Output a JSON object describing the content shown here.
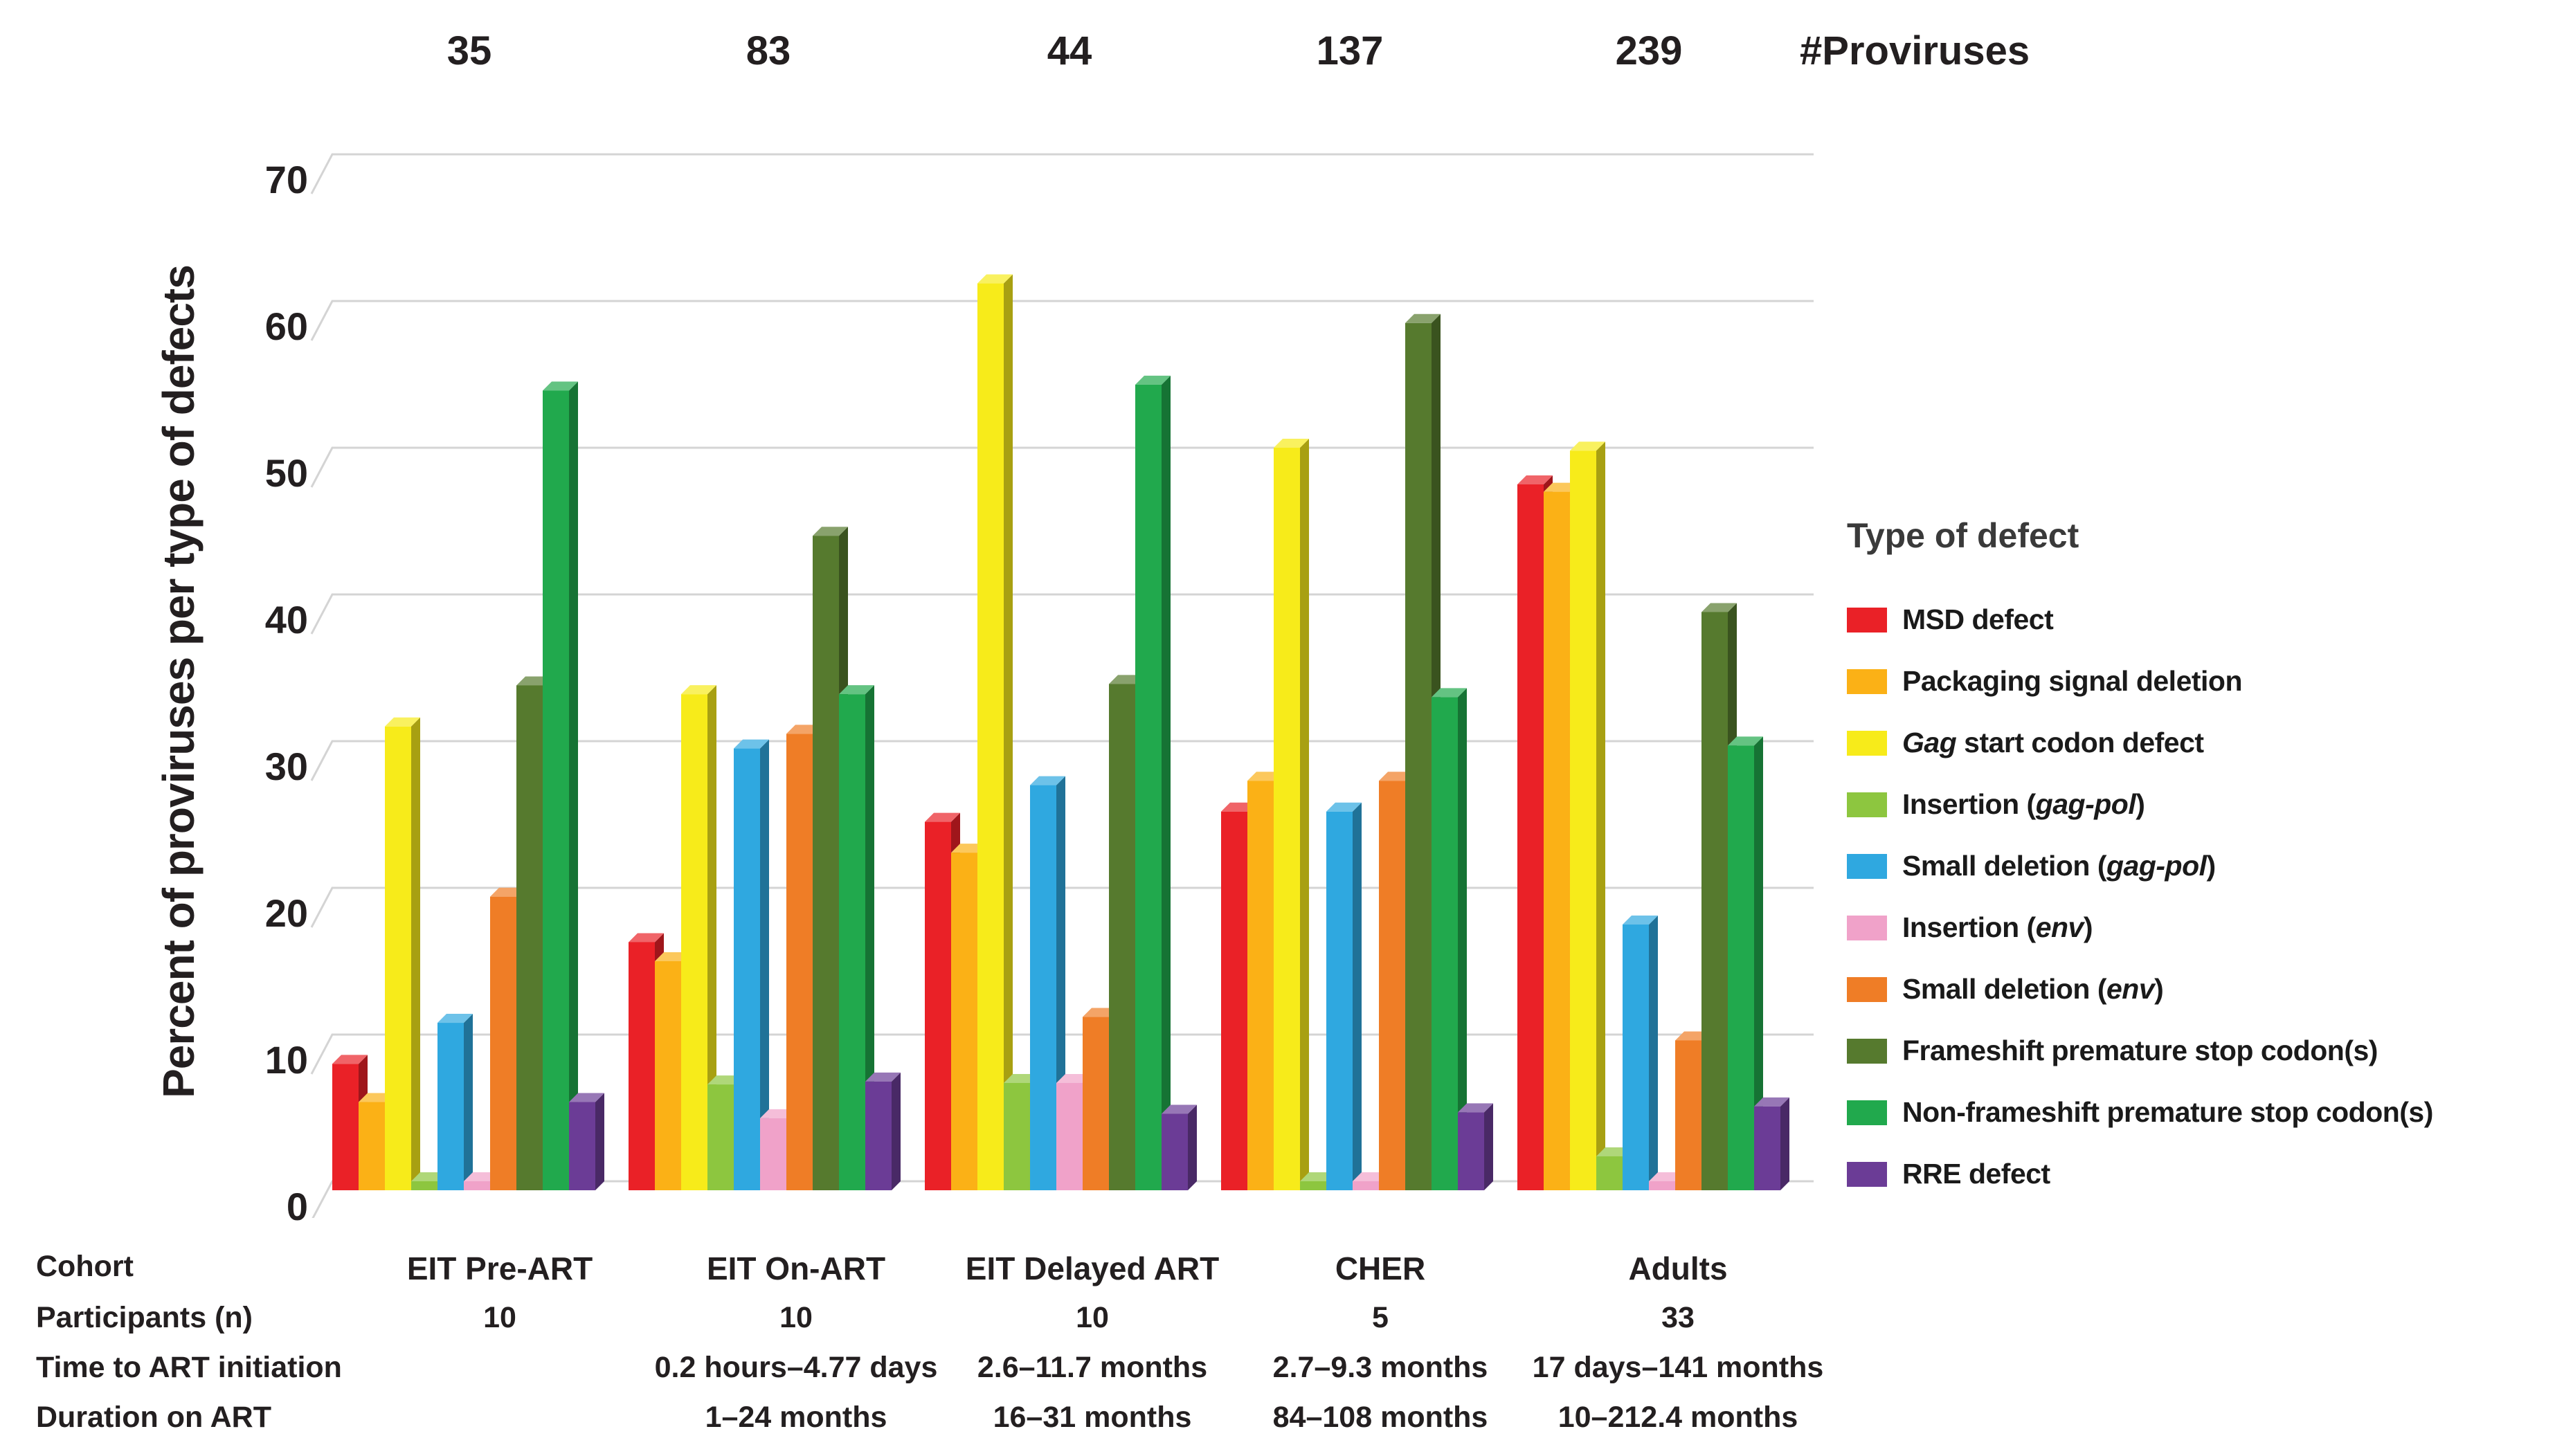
{
  "proviruses_row": {
    "counts": [
      "35",
      "83",
      "44",
      "137",
      "239"
    ],
    "label": "#Proviruses"
  },
  "y_axis": {
    "title": "Percent of proviruses per type of defects",
    "ticks": [
      "70",
      "60",
      "50",
      "40",
      "30",
      "20",
      "10",
      "0"
    ]
  },
  "legend": {
    "title": "Type of defect"
  },
  "chart_data": {
    "type": "bar",
    "style": "3d-grouped-bars",
    "title": "",
    "xlabel": "Cohort",
    "ylabel": "Percent of proviruses per type of defects",
    "ylim": [
      0,
      70
    ],
    "ytick_step": 10,
    "grid": true,
    "legend_position": "right",
    "categories": [
      "EIT Pre-ART",
      "EIT On-ART",
      "EIT Delayed ART",
      "CHER",
      "Adults"
    ],
    "proviruses_counts": [
      35,
      83,
      44,
      137,
      239
    ],
    "series": [
      {
        "name": "MSD defect",
        "color": "#EA2127",
        "values": [
          8.0,
          16.3,
          24.5,
          25.2,
          47.5
        ]
      },
      {
        "name": "Packaging signal deletion",
        "color": "#FBB116",
        "values": [
          5.4,
          15.0,
          22.4,
          27.3,
          47.0
        ]
      },
      {
        "name": "Gag start codon defect",
        "color": "#F7EB1A",
        "values": [
          31.0,
          33.2,
          61.2,
          50.0,
          49.8
        ]
      },
      {
        "name": "Insertion (gag-pol)",
        "color": "#8DC63F",
        "values": [
          0,
          6.6,
          6.7,
          0,
          1.7
        ]
      },
      {
        "name": "Small deletion (gag-pol)",
        "color": "#2FA8E0",
        "values": [
          10.8,
          29.5,
          27.0,
          25.2,
          17.5
        ]
      },
      {
        "name": "Insertion (env)",
        "color": "#F0A2C9",
        "values": [
          0,
          4.3,
          6.7,
          0,
          0
        ]
      },
      {
        "name": "Small deletion (env)",
        "color": "#EF7D26",
        "values": [
          19.4,
          30.5,
          11.2,
          27.3,
          9.6
        ]
      },
      {
        "name": "Frameshift premature stop codon(s)",
        "color": "#567A2E",
        "values": [
          33.8,
          44.0,
          33.9,
          58.5,
          38.8
        ]
      },
      {
        "name": "Non-frameshift premature stop codon(s)",
        "color": "#21A94D",
        "values": [
          53.9,
          33.2,
          54.3,
          33.0,
          29.7
        ]
      },
      {
        "name": "RRE defect",
        "color": "#6B3C96",
        "values": [
          5.4,
          6.8,
          4.6,
          4.7,
          5.1
        ]
      }
    ]
  },
  "table": {
    "rows": [
      {
        "label": "Cohort",
        "values": [
          "EIT Pre-ART",
          "EIT On-ART",
          "EIT Delayed ART",
          "CHER",
          "Adults"
        ]
      },
      {
        "label": "Participants (n)",
        "values": [
          "10",
          "10",
          "10",
          "5",
          "33"
        ]
      },
      {
        "label": "Time to ART initiation",
        "values": [
          "",
          "0.2 hours–4.77 days",
          "2.6–11.7 months",
          "2.7–9.3 months",
          "17 days–141 months"
        ]
      },
      {
        "label": "Duration on ART",
        "values": [
          "",
          "1–24 months",
          "16–31 months",
          "84–108 months",
          "10–212.4 months"
        ]
      }
    ]
  },
  "style_tokens": {
    "grid_color": "#D4D4D4",
    "text_color": "#231F20",
    "background": "#FFFFFF"
  }
}
